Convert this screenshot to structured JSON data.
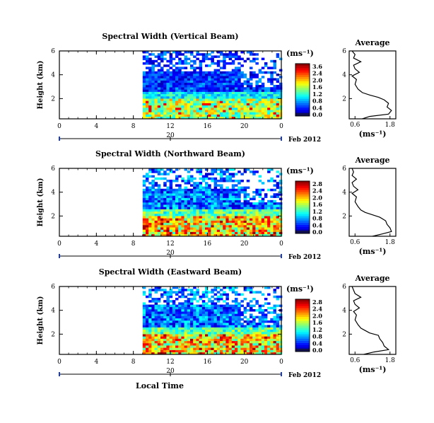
{
  "chart_data": [
    {
      "type": "heatmap",
      "title": "Spectral Width (Vertical Beam)",
      "ylabel": "Height (km)",
      "xlabel": "",
      "x_ticks": [
        "0",
        "4",
        "8",
        "12",
        "16",
        "20",
        "0"
      ],
      "y_ticks": [
        "6",
        "4",
        "2"
      ],
      "xlim": [
        0,
        24
      ],
      "ylim": [
        0.3,
        6
      ],
      "date_tick": "20",
      "date_label": "Feb 2012",
      "colorbar": {
        "unit": "(ms⁻¹)",
        "ticks": [
          "3.6",
          "2.4",
          "2.0",
          "1.6",
          "1.2",
          "0.8",
          "0.4",
          "0.0"
        ],
        "range": [
          0,
          3.6
        ]
      },
      "data_start_hour": 9,
      "nodata_regions": [
        [
          9,
          24,
          4.2,
          6.0
        ],
        [
          19.5,
          24,
          2.8,
          6.0
        ]
      ],
      "high_region": {
        "height_km": [
          0.3,
          2.0
        ],
        "value": 1.8,
        "max": 3.2
      },
      "profile": {
        "title": "Average",
        "xlabel": "(ms⁻¹)",
        "x_ticks": [
          "0.6",
          "1.8"
        ],
        "y_ticks": [
          "6",
          "4",
          "2"
        ],
        "xlim": [
          0.4,
          2.0
        ],
        "ylim": [
          0.3,
          6
        ],
        "height_km": [
          0.3,
          0.5,
          0.7,
          1.0,
          1.3,
          1.6,
          1.9,
          2.1,
          2.3,
          2.5,
          2.8,
          3.2,
          3.6,
          3.9,
          4.2,
          4.5,
          4.8,
          5.1,
          5.4,
          5.7,
          6.0
        ],
        "values": [
          0.85,
          1.1,
          1.75,
          1.85,
          1.7,
          1.75,
          1.6,
          1.4,
          1.1,
          0.85,
          0.7,
          0.6,
          0.65,
          0.5,
          0.75,
          0.6,
          0.55,
          0.8,
          0.55,
          0.6,
          0.5
        ]
      }
    },
    {
      "type": "heatmap",
      "title": "Spectral Width (Northward Beam)",
      "ylabel": "Height (km)",
      "xlabel": "",
      "x_ticks": [
        "0",
        "4",
        "8",
        "12",
        "16",
        "20",
        "0"
      ],
      "y_ticks": [
        "6",
        "4",
        "2"
      ],
      "xlim": [
        0,
        24
      ],
      "ylim": [
        0.3,
        6
      ],
      "date_tick": "20",
      "date_label": "Feb 2012",
      "colorbar": {
        "unit": "(ms⁻¹)",
        "ticks": [
          "2.8",
          "2.4",
          "2.0",
          "1.6",
          "1.2",
          "0.8",
          "0.4",
          "0.0"
        ],
        "range": [
          0,
          2.8
        ]
      },
      "data_start_hour": 9,
      "nodata_regions": [
        [
          9,
          24,
          4.2,
          6.0
        ],
        [
          19.5,
          24,
          3.0,
          6.0
        ]
      ],
      "high_region": {
        "height_km": [
          0.3,
          2.0
        ],
        "value": 1.7,
        "max": 2.7
      },
      "profile": {
        "title": "Average",
        "xlabel": "(ms⁻¹)",
        "x_ticks": [
          "0.6",
          "1.8"
        ],
        "y_ticks": [
          "6",
          "4",
          "2"
        ],
        "xlim": [
          0.4,
          2.0
        ],
        "ylim": [
          0.3,
          6
        ],
        "height_km": [
          0.3,
          0.5,
          0.7,
          1.0,
          1.3,
          1.6,
          1.9,
          2.1,
          2.3,
          2.5,
          2.8,
          3.2,
          3.6,
          3.9,
          4.2,
          4.5,
          4.8,
          5.1,
          5.4,
          5.7,
          6.0
        ],
        "values": [
          1.2,
          1.55,
          1.85,
          1.8,
          1.7,
          1.65,
          1.45,
          1.2,
          0.95,
          0.8,
          0.7,
          0.6,
          0.65,
          0.5,
          0.7,
          0.55,
          0.5,
          0.65,
          0.5,
          0.55,
          0.5
        ]
      }
    },
    {
      "type": "heatmap",
      "title": "Spectral Width (Eastward Beam)",
      "ylabel": "Height (km)",
      "xlabel": "Local Time",
      "x_ticks": [
        "0",
        "4",
        "8",
        "12",
        "16",
        "20",
        "0"
      ],
      "y_ticks": [
        "6",
        "4",
        "2"
      ],
      "xlim": [
        0,
        24
      ],
      "ylim": [
        0.3,
        6
      ],
      "date_tick": "20",
      "date_label": "Feb 2012",
      "colorbar": {
        "unit": "(ms⁻¹)",
        "ticks": [
          "2.8",
          "2.4",
          "2.0",
          "1.6",
          "1.2",
          "0.8",
          "0.4",
          "0.0"
        ],
        "range": [
          0,
          2.8
        ]
      },
      "data_start_hour": 9,
      "nodata_regions": [
        [
          9,
          24,
          4.4,
          6.0
        ],
        [
          19.5,
          24,
          2.6,
          6.0
        ]
      ],
      "high_region": {
        "height_km": [
          0.3,
          2.0
        ],
        "value": 1.7,
        "max": 2.7
      },
      "profile": {
        "title": "Average",
        "xlabel": "(ms⁻¹)",
        "x_ticks": [
          "0.6",
          "1.8"
        ],
        "y_ticks": [
          "6",
          "4",
          "2"
        ],
        "xlim": [
          0.4,
          2.0
        ],
        "ylim": [
          0.3,
          6
        ],
        "height_km": [
          0.3,
          0.5,
          0.7,
          1.0,
          1.3,
          1.6,
          1.9,
          2.1,
          2.3,
          2.5,
          2.8,
          3.2,
          3.6,
          3.9,
          4.2,
          4.5,
          4.8,
          5.1,
          5.4,
          5.7,
          6.0
        ],
        "values": [
          0.9,
          1.25,
          1.75,
          1.6,
          1.55,
          1.45,
          1.4,
          1.1,
          0.95,
          0.8,
          0.7,
          0.6,
          0.65,
          0.55,
          0.75,
          0.6,
          0.55,
          0.8,
          0.6,
          0.55,
          0.5
        ]
      }
    }
  ]
}
